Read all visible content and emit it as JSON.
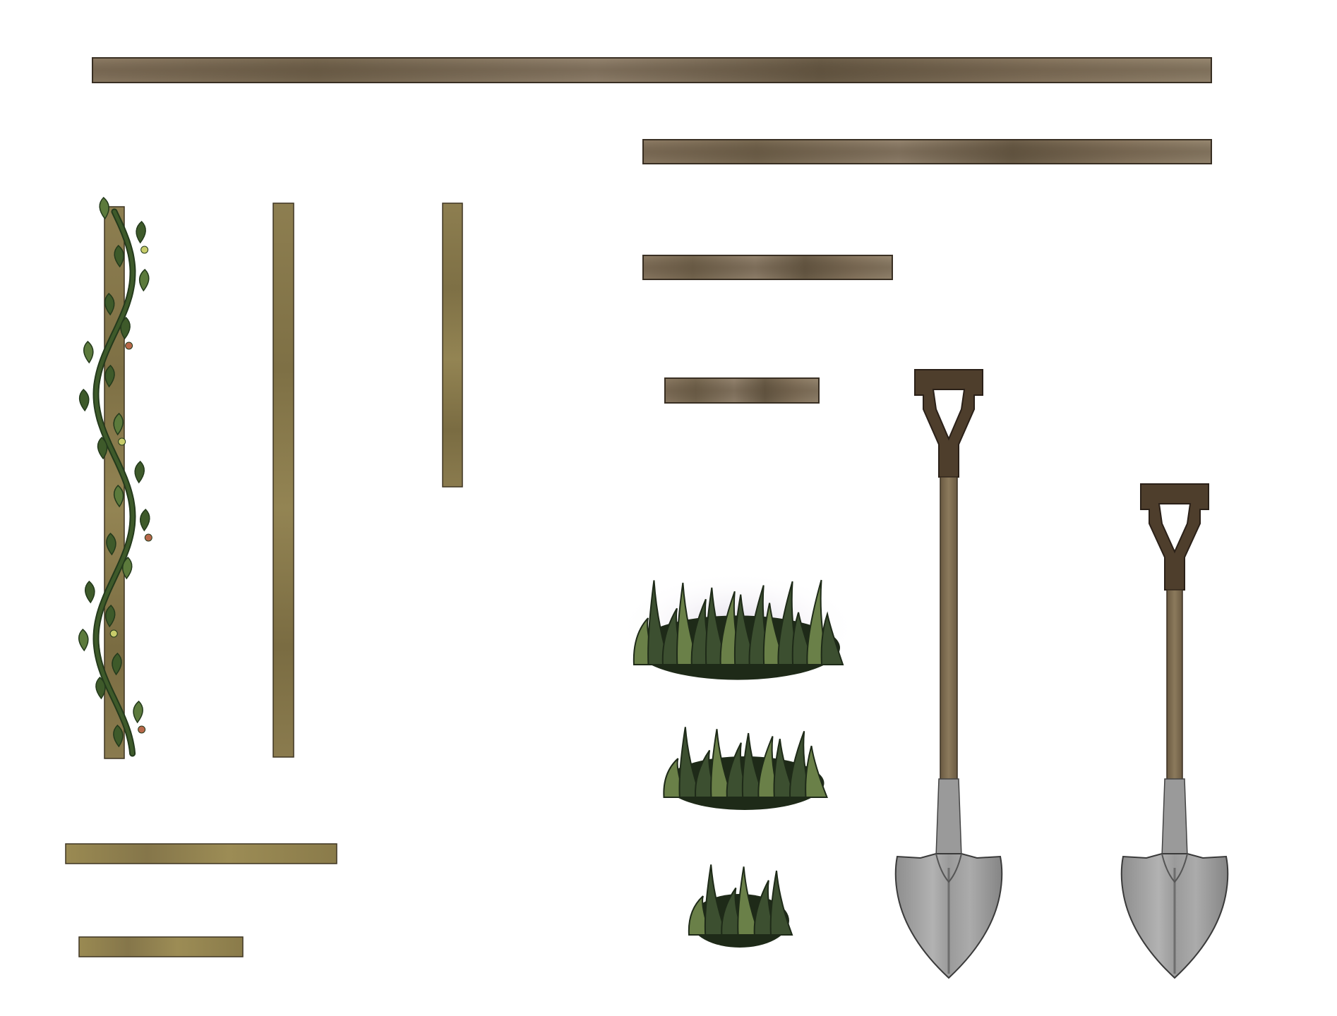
{
  "sprite_sheet": {
    "background": "#ffffff",
    "colors": {
      "plank_brown": "#8c7a62",
      "plank_dark": "#6b5a44",
      "plank_edge": "#3a3024",
      "post_olive": "#8a7b4e",
      "post_dark": "#6e6238",
      "stick_olive": "#95854e",
      "vine_green": "#3e5a2a",
      "vine_dark": "#243a1c",
      "leaf_light": "#5c7a3c",
      "berry_yellow": "#c8cc6a",
      "berry_red": "#b8684a",
      "bush_green": "#3c4f30",
      "bush_dark": "#1e2a18",
      "bush_highlight": "#6a8048",
      "bush_glow": "#d8cfe0",
      "shovel_handle": "#7c6a4e",
      "shovel_grip": "#4a3a2a",
      "shovel_blade": "#a3a3a3",
      "shovel_blade_dark": "#6e6e6e",
      "shovel_outline": "#3a3a3a"
    },
    "sprites": {
      "horizontal_planks": [
        "long-plank",
        "medium-long-plank",
        "medium-plank",
        "short-plank"
      ],
      "vertical_posts": [
        "vine-covered-post",
        "tall-post",
        "short-post"
      ],
      "lying_sticks": [
        "long-stick",
        "short-stick"
      ],
      "bushes": [
        "large-bush",
        "medium-bush",
        "small-bush"
      ],
      "shovels": [
        "large-shovel",
        "small-shovel"
      ]
    }
  }
}
